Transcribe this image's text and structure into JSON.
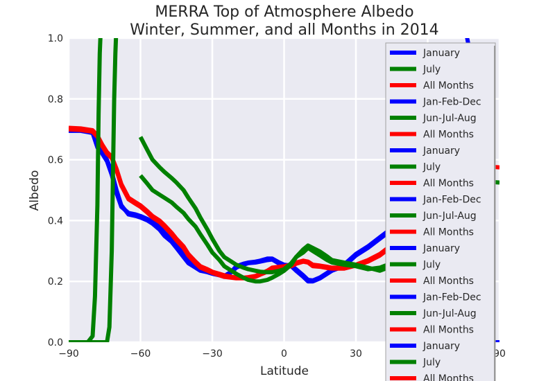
{
  "chart_data": {
    "type": "line",
    "title": [
      "MERRA Top of Atmosphere Albedo",
      "Winter, Summer, and all Months in 2014"
    ],
    "xlabel": "Latitude",
    "ylabel": "Albedo",
    "xlim": [
      -90,
      90
    ],
    "ylim": [
      0.0,
      1.0
    ],
    "xticks": [
      "−90",
      "−60",
      "−30",
      "0",
      "30",
      "60",
      "90"
    ],
    "xtick_values": [
      -90,
      -60,
      -30,
      0,
      30,
      60,
      90
    ],
    "yticks": [
      "0.0",
      "0.2",
      "0.4",
      "0.6",
      "0.8",
      "1.0"
    ],
    "ytick_values": [
      0.0,
      0.2,
      0.4,
      0.6,
      0.8,
      1.0
    ],
    "grid": true,
    "legend_placement": "right",
    "colors": {
      "blue": "#0000ff",
      "green": "#008000",
      "red": "#ff0000",
      "background": "#eaeaf2",
      "grid": "#ffffff"
    },
    "legend": [
      {
        "label": "January",
        "color": "#0000ff"
      },
      {
        "label": "July",
        "color": "#008000"
      },
      {
        "label": "All Months",
        "color": "#ff0000"
      },
      {
        "label": "Jan-Feb-Dec",
        "color": "#0000ff"
      },
      {
        "label": "Jun-Jul-Aug",
        "color": "#008000"
      },
      {
        "label": "All Months",
        "color": "#ff0000"
      },
      {
        "label": "January",
        "color": "#0000ff"
      },
      {
        "label": "July",
        "color": "#008000"
      },
      {
        "label": "All Months",
        "color": "#ff0000"
      },
      {
        "label": "Jan-Feb-Dec",
        "color": "#0000ff"
      },
      {
        "label": "Jun-Jul-Aug",
        "color": "#008000"
      },
      {
        "label": "All Months",
        "color": "#ff0000"
      },
      {
        "label": "January",
        "color": "#0000ff"
      },
      {
        "label": "July",
        "color": "#008000"
      },
      {
        "label": "All Months",
        "color": "#ff0000"
      },
      {
        "label": "Jan-Feb-Dec",
        "color": "#0000ff"
      },
      {
        "label": "Jun-Jul-Aug",
        "color": "#008000"
      },
      {
        "label": "All Months",
        "color": "#ff0000"
      },
      {
        "label": "January",
        "color": "#0000ff"
      },
      {
        "label": "July",
        "color": "#008000"
      },
      {
        "label": "All Months",
        "color": "#ff0000"
      }
    ],
    "series": [
      {
        "color": "#0000ff",
        "x": [
          -90,
          -85,
          -80,
          -78,
          -76,
          -74,
          -72,
          -70,
          -68,
          -65,
          -62,
          -60,
          -57,
          -55,
          -52,
          -50,
          -47,
          -45,
          -42,
          -40,
          -37,
          -35,
          -32,
          -30,
          -27,
          -25,
          -22,
          -20,
          -17,
          -15,
          -12,
          -10,
          -7,
          -5,
          -2,
          0,
          3,
          5,
          8,
          10,
          12,
          15,
          18,
          20,
          25,
          30,
          35,
          40,
          45,
          50,
          55,
          60
        ],
        "y": [
          0.7,
          0.7,
          0.69,
          0.65,
          0.63,
          0.6,
          0.56,
          0.5,
          0.45,
          0.42,
          0.415,
          0.41,
          0.4,
          0.39,
          0.37,
          0.35,
          0.33,
          0.31,
          0.28,
          0.26,
          0.245,
          0.235,
          0.23,
          0.225,
          0.22,
          0.215,
          0.23,
          0.245,
          0.255,
          0.26,
          0.262,
          0.265,
          0.27,
          0.272,
          0.258,
          0.25,
          0.25,
          0.235,
          0.215,
          0.2,
          0.2,
          0.21,
          0.225,
          0.235,
          0.25,
          0.285,
          0.31,
          0.34,
          0.37,
          0.41,
          0.45,
          0.49
        ]
      },
      {
        "color": "#0000ff",
        "x": [
          -90,
          -85,
          -80,
          -78,
          -76,
          -74,
          -72,
          -70,
          -68,
          -65,
          -62,
          -60,
          -57,
          -55,
          -52,
          -50,
          -47,
          -45,
          -42,
          -40,
          -37,
          -35,
          -32,
          -30,
          -27,
          -25,
          -22,
          -20,
          -17,
          -15,
          -12,
          -10,
          -7,
          -5,
          -2,
          0,
          3,
          5,
          8,
          10,
          12,
          15,
          18,
          20,
          25,
          30,
          35,
          40,
          45,
          50,
          55,
          60
        ],
        "y": [
          0.695,
          0.695,
          0.688,
          0.64,
          0.62,
          0.595,
          0.55,
          0.49,
          0.445,
          0.425,
          0.42,
          0.415,
          0.405,
          0.395,
          0.38,
          0.36,
          0.34,
          0.32,
          0.29,
          0.265,
          0.25,
          0.24,
          0.235,
          0.228,
          0.222,
          0.218,
          0.232,
          0.25,
          0.258,
          0.262,
          0.265,
          0.268,
          0.275,
          0.275,
          0.262,
          0.255,
          0.252,
          0.24,
          0.22,
          0.205,
          0.203,
          0.213,
          0.228,
          0.238,
          0.255,
          0.29,
          0.315,
          0.345,
          0.375,
          0.415,
          0.455,
          0.495
        ]
      },
      {
        "color": "#ff0000",
        "x": [
          -90,
          -85,
          -80,
          -78,
          -76,
          -74,
          -72,
          -70,
          -68,
          -65,
          -62,
          -60,
          -57,
          -55,
          -52,
          -50,
          -47,
          -45,
          -42,
          -40,
          -37,
          -35,
          -32,
          -30,
          -27,
          -25,
          -22,
          -20,
          -17,
          -15,
          -12,
          -10,
          -7,
          -5,
          -2,
          0,
          3,
          5,
          8,
          10,
          12,
          15,
          18,
          20,
          25,
          30,
          35,
          40,
          45,
          50,
          55,
          60
        ],
        "y": [
          0.705,
          0.703,
          0.697,
          0.68,
          0.65,
          0.625,
          0.61,
          0.57,
          0.52,
          0.475,
          0.46,
          0.45,
          0.43,
          0.415,
          0.4,
          0.385,
          0.36,
          0.34,
          0.315,
          0.29,
          0.265,
          0.25,
          0.24,
          0.232,
          0.225,
          0.22,
          0.215,
          0.213,
          0.212,
          0.214,
          0.218,
          0.225,
          0.235,
          0.245,
          0.248,
          0.25,
          0.255,
          0.262,
          0.268,
          0.265,
          0.255,
          0.252,
          0.248,
          0.245,
          0.245,
          0.255,
          0.27,
          0.29,
          0.32,
          0.36,
          0.42,
          0.48
        ]
      },
      {
        "color": "#ff0000",
        "x": [
          -90,
          -85,
          -80,
          -78,
          -76,
          -74,
          -72,
          -70,
          -68,
          -65,
          -62,
          -60,
          -57,
          -55,
          -52,
          -50,
          -47,
          -45,
          -42,
          -40,
          -37,
          -35,
          -32,
          -30,
          -27,
          -25,
          -22,
          -20,
          -17,
          -15,
          -12,
          -10,
          -7,
          -5,
          -2,
          0,
          3,
          5,
          8,
          10,
          12,
          15,
          18,
          20,
          25,
          30,
          35,
          40,
          45,
          50,
          55,
          60
        ],
        "y": [
          0.7,
          0.698,
          0.692,
          0.675,
          0.645,
          0.62,
          0.605,
          0.565,
          0.515,
          0.47,
          0.455,
          0.445,
          0.425,
          0.41,
          0.395,
          0.38,
          0.355,
          0.335,
          0.31,
          0.285,
          0.26,
          0.245,
          0.235,
          0.228,
          0.22,
          0.215,
          0.212,
          0.21,
          0.21,
          0.212,
          0.215,
          0.222,
          0.232,
          0.24,
          0.244,
          0.246,
          0.25,
          0.258,
          0.265,
          0.262,
          0.25,
          0.248,
          0.244,
          0.242,
          0.242,
          0.252,
          0.265,
          0.285,
          0.315,
          0.355,
          0.415,
          0.475
        ]
      },
      {
        "color": "#008000",
        "x": [
          -60,
          -57,
          -55,
          -52,
          -50,
          -47,
          -45,
          -42,
          -40,
          -37,
          -35,
          -32,
          -30,
          -27,
          -25,
          -22,
          -20,
          -17,
          -15,
          -12,
          -10,
          -7,
          -5,
          -2,
          0,
          3,
          5,
          8,
          10,
          12,
          15,
          18,
          20,
          25,
          30,
          35,
          40,
          45,
          50,
          55,
          60
        ],
        "y": [
          0.675,
          0.63,
          0.6,
          0.575,
          0.56,
          0.54,
          0.525,
          0.5,
          0.475,
          0.44,
          0.41,
          0.37,
          0.34,
          0.3,
          0.28,
          0.265,
          0.255,
          0.245,
          0.24,
          0.235,
          0.232,
          0.23,
          0.23,
          0.235,
          0.24,
          0.26,
          0.28,
          0.295,
          0.31,
          0.3,
          0.285,
          0.27,
          0.262,
          0.255,
          0.25,
          0.24,
          0.245,
          0.26,
          0.285,
          0.34,
          0.4
        ]
      },
      {
        "color": "#008000",
        "x": [
          -60,
          -57,
          -55,
          -52,
          -50,
          -47,
          -45,
          -42,
          -40,
          -37,
          -35,
          -32,
          -30,
          -27,
          -25,
          -22,
          -20,
          -17,
          -15,
          -12,
          -10,
          -7,
          -5,
          -2,
          0,
          3,
          5,
          8,
          10,
          12,
          15,
          18,
          20,
          25,
          30,
          35,
          40,
          45,
          50,
          55,
          60
        ],
        "y": [
          0.548,
          0.52,
          0.5,
          0.485,
          0.475,
          0.46,
          0.445,
          0.425,
          0.405,
          0.38,
          0.355,
          0.32,
          0.295,
          0.27,
          0.25,
          0.235,
          0.225,
          0.212,
          0.205,
          0.2,
          0.2,
          0.205,
          0.212,
          0.225,
          0.235,
          0.255,
          0.28,
          0.305,
          0.318,
          0.31,
          0.298,
          0.282,
          0.27,
          0.262,
          0.255,
          0.245,
          0.235,
          0.25,
          0.27,
          0.32,
          0.38
        ]
      },
      {
        "color": "#008000",
        "x": [
          -90,
          -85,
          -82,
          -80,
          -79,
          -78,
          -77.5,
          -77,
          -76.5
        ],
        "y": [
          0.0,
          0.0,
          0.0,
          0.02,
          0.15,
          0.45,
          0.75,
          0.95,
          1.05
        ]
      },
      {
        "color": "#008000",
        "x": [
          -90,
          -80,
          -76,
          -74,
          -73,
          -72,
          -71.5,
          -71,
          -70.5,
          -70
        ],
        "y": [
          0.0,
          0.0,
          0.0,
          0.0,
          0.05,
          0.3,
          0.55,
          0.8,
          0.95,
          1.05
        ]
      },
      {
        "color": "#0000ff",
        "x": [
          80,
          85,
          90
        ],
        "y": [
          0.0,
          0.0,
          0.0
        ]
      },
      {
        "color": "#008000",
        "x": [
          80,
          85,
          90
        ],
        "y": [
          0.53,
          0.528,
          0.525
        ]
      },
      {
        "color": "#ff0000",
        "x": [
          80,
          85,
          90
        ],
        "y": [
          0.58,
          0.578,
          0.575
        ]
      },
      {
        "color": "#0000ff",
        "x": [
          75,
          76,
          77
        ],
        "y": [
          1.05,
          1.02,
          0.98
        ]
      }
    ]
  }
}
